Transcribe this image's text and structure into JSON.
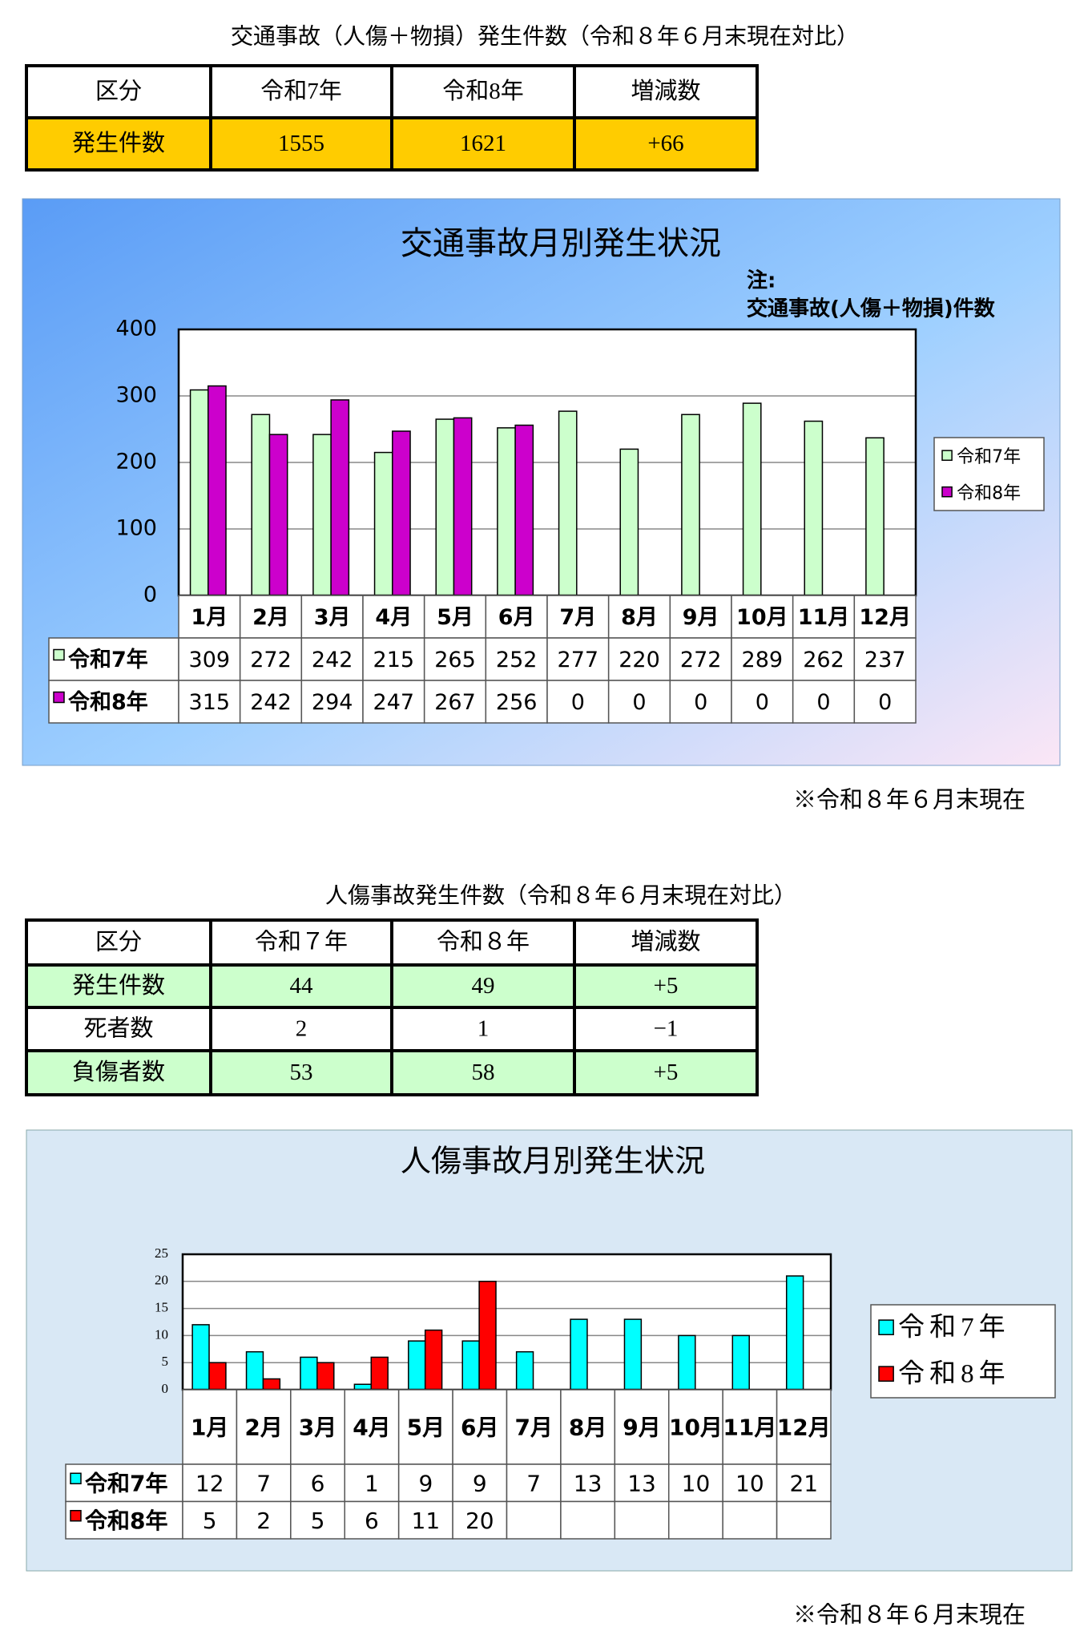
{
  "table1": {
    "title": "交通事故（人傷＋物損）発生件数（令和８年６月末現在対比）",
    "header": [
      "区分",
      "令和7年",
      "令和8年",
      "増減数"
    ],
    "rows": [
      [
        "発生件数",
        "1555",
        "1621",
        "+66"
      ]
    ]
  },
  "note1": "※令和８年６月末現在",
  "table2": {
    "title": "人傷事故発生件数（令和８年６月末現在対比）",
    "header": [
      "区分",
      "令和７年",
      "令和８年",
      "増減数"
    ],
    "rows": [
      [
        "発生件数",
        "44",
        "49",
        "+5"
      ],
      [
        "死者数",
        "2",
        "1",
        "−1"
      ],
      [
        "負傷者数",
        "53",
        "58",
        "+5"
      ]
    ]
  },
  "note2": "※令和８年６月末現在",
  "chart_data": [
    {
      "type": "bar",
      "title": "交通事故月別発生状況",
      "annotations": [
        "注:",
        "交通事故(人傷＋物損)件数"
      ],
      "categories": [
        "1月",
        "2月",
        "3月",
        "4月",
        "5月",
        "6月",
        "7月",
        "8月",
        "9月",
        "10月",
        "11月",
        "12月"
      ],
      "series": [
        {
          "name": "令和7年",
          "color": "#ccffcc",
          "values": [
            309,
            272,
            242,
            215,
            265,
            252,
            277,
            220,
            272,
            289,
            262,
            237
          ]
        },
        {
          "name": "令和8年",
          "color": "#cc00cc",
          "values": [
            315,
            242,
            294,
            247,
            267,
            256,
            0,
            0,
            0,
            0,
            0,
            0
          ]
        }
      ],
      "ylim": [
        0,
        400
      ],
      "yticks": [
        0,
        100,
        200,
        300,
        400
      ],
      "grid": true,
      "legend": "right"
    },
    {
      "type": "bar",
      "title": "人傷事故月別発生状況",
      "categories": [
        "1月",
        "2月",
        "3月",
        "4月",
        "5月",
        "6月",
        "7月",
        "8月",
        "9月",
        "10月",
        "11月",
        "12月"
      ],
      "series": [
        {
          "name": "令和7年",
          "color": "#00ffff",
          "values": [
            12,
            7,
            6,
            1,
            9,
            9,
            7,
            13,
            13,
            10,
            10,
            21
          ]
        },
        {
          "name": "令和8年",
          "color": "#ff0000",
          "values": [
            5,
            2,
            5,
            6,
            11,
            20,
            null,
            null,
            null,
            null,
            null,
            null
          ]
        }
      ],
      "ylim": [
        0,
        25
      ],
      "yticks": [
        0,
        5,
        10,
        15,
        20,
        25
      ],
      "grid": true,
      "legend": "right"
    }
  ]
}
